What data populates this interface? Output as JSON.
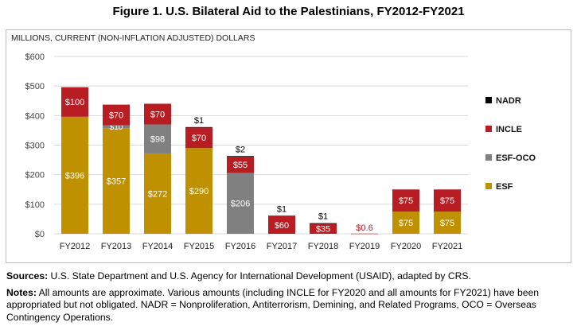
{
  "title": "Figure 1. U.S. Bilateral Aid to the Palestinians, FY2012-FY2021",
  "sources_label": "Sources:",
  "sources_text": "U.S. State Department and U.S. Agency for International Development (USAID), adapted by CRS.",
  "notes_label": "Notes:",
  "notes_text": "All amounts are approximate. Various amounts (including INCLE for FY2020 and all amounts for FY2021) have been appropriated but not obligated. NADR = Nonproliferation, Antiterrorism, Demining, and Related Programs, OCO = Overseas Contingency Operations.",
  "chart_data": {
    "type": "bar",
    "stacked": true,
    "title": "",
    "ylabel": "MILLIONS, CURRENT (NON-INFLATION ADJUSTED) DOLLARS",
    "xlabel": "",
    "ylim": [
      0,
      600
    ],
    "yticks": [
      0,
      100,
      200,
      300,
      400,
      500,
      600
    ],
    "ytick_labels": [
      "$0",
      "$100",
      "$200",
      "$300",
      "$400",
      "$500",
      "$600"
    ],
    "grid": true,
    "legend_position": "right",
    "categories": [
      "FY2012",
      "FY2013",
      "FY2014",
      "FY2015",
      "FY2016",
      "FY2017",
      "FY2018",
      "FY2019",
      "FY2020",
      "FY2021"
    ],
    "series": [
      {
        "name": "ESF",
        "color": "#bf9000",
        "values": [
          396,
          357,
          272,
          290,
          0,
          0,
          0,
          0,
          75,
          75
        ],
        "labels": [
          "$396",
          "$357",
          "$272",
          "$290",
          "",
          "",
          "",
          "",
          "$75",
          "$75"
        ]
      },
      {
        "name": "ESF-OCO",
        "color": "#808080",
        "values": [
          0,
          10,
          98,
          0,
          206,
          0,
          0,
          0,
          0,
          0
        ],
        "labels": [
          "",
          "$10",
          "$98",
          "",
          "$206",
          "",
          "",
          "",
          "",
          ""
        ]
      },
      {
        "name": "INCLE",
        "color": "#b81d23",
        "values": [
          100,
          70,
          70,
          70,
          55,
          60,
          35,
          0.6,
          75,
          75
        ],
        "labels": [
          "$100",
          "$70",
          "$70",
          "$70",
          "$55",
          "$60",
          "$35",
          "$0.6",
          "$75",
          "$75"
        ]
      },
      {
        "name": "NADR",
        "color": "#000000",
        "values": [
          0,
          0,
          0,
          1,
          2,
          1,
          1,
          0,
          0,
          0
        ],
        "labels": [
          "",
          "",
          "",
          "$1",
          "$2",
          "$1",
          "$1",
          "",
          "",
          ""
        ]
      }
    ],
    "legend_order": [
      "NADR",
      "INCLE",
      "ESF-OCO",
      "ESF"
    ],
    "colors": {
      "label_light": "#ffffff",
      "label_dark": "#000000",
      "label_zero": "#b81d23",
      "grid": "#d9d9d9",
      "axis_text": "#444444"
    }
  }
}
